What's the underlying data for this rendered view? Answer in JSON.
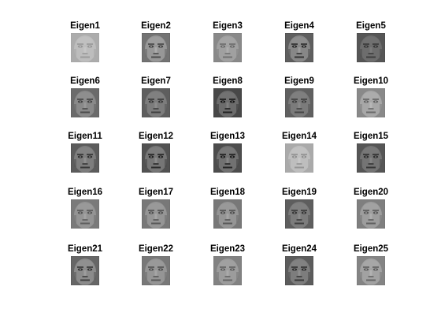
{
  "chart_data": {
    "type": "image-grid",
    "rows": 5,
    "cols": 5,
    "panels": [
      {
        "title": "Eigen1",
        "brightness": 0.72,
        "contrast": 0.25
      },
      {
        "title": "Eigen2",
        "brightness": 0.55,
        "contrast": 0.55
      },
      {
        "title": "Eigen3",
        "brightness": 0.6,
        "contrast": 0.35
      },
      {
        "title": "Eigen4",
        "brightness": 0.48,
        "contrast": 0.6
      },
      {
        "title": "Eigen5",
        "brightness": 0.4,
        "contrast": 0.35
      },
      {
        "title": "Eigen6",
        "brightness": 0.5,
        "contrast": 0.45
      },
      {
        "title": "Eigen7",
        "brightness": 0.45,
        "contrast": 0.45
      },
      {
        "title": "Eigen8",
        "brightness": 0.38,
        "contrast": 0.55
      },
      {
        "title": "Eigen9",
        "brightness": 0.45,
        "contrast": 0.4
      },
      {
        "title": "Eigen10",
        "brightness": 0.62,
        "contrast": 0.45
      },
      {
        "title": "Eigen11",
        "brightness": 0.45,
        "contrast": 0.5
      },
      {
        "title": "Eigen12",
        "brightness": 0.42,
        "contrast": 0.55
      },
      {
        "title": "Eigen13",
        "brightness": 0.4,
        "contrast": 0.55
      },
      {
        "title": "Eigen14",
        "brightness": 0.72,
        "contrast": 0.3
      },
      {
        "title": "Eigen15",
        "brightness": 0.42,
        "contrast": 0.45
      },
      {
        "title": "Eigen16",
        "brightness": 0.55,
        "contrast": 0.4
      },
      {
        "title": "Eigen17",
        "brightness": 0.55,
        "contrast": 0.45
      },
      {
        "title": "Eigen18",
        "brightness": 0.55,
        "contrast": 0.45
      },
      {
        "title": "Eigen19",
        "brightness": 0.45,
        "contrast": 0.45
      },
      {
        "title": "Eigen20",
        "brightness": 0.58,
        "contrast": 0.45
      },
      {
        "title": "Eigen21",
        "brightness": 0.5,
        "contrast": 0.55
      },
      {
        "title": "Eigen22",
        "brightness": 0.55,
        "contrast": 0.45
      },
      {
        "title": "Eigen23",
        "brightness": 0.58,
        "contrast": 0.4
      },
      {
        "title": "Eigen24",
        "brightness": 0.45,
        "contrast": 0.5
      },
      {
        "title": "Eigen25",
        "brightness": 0.6,
        "contrast": 0.45
      }
    ]
  }
}
